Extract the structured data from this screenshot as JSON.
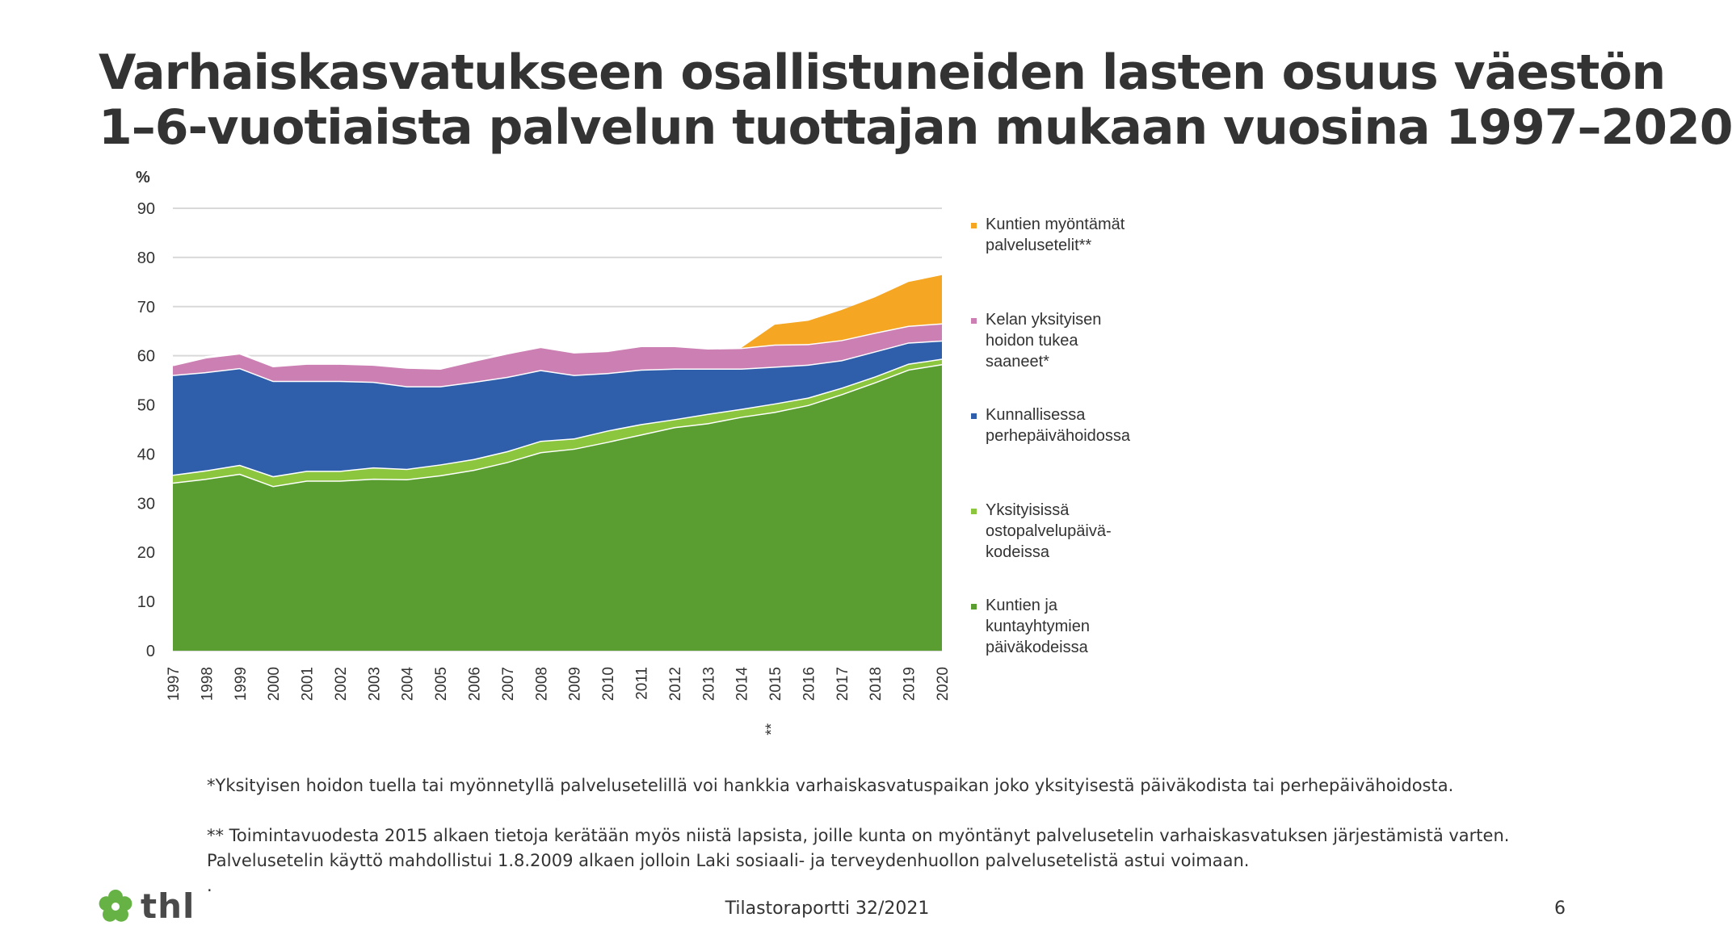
{
  "title_lines": [
    "Varhaiskasvatukseen osallistuneiden lasten osuus väestön",
    "1–6-vuotiaista palvelun tuottajan mukaan vuosina 1997–2020"
  ],
  "footnotes": {
    "note1": "*Yksityisen hoidon tuella tai myönnetyllä palvelusetelillä voi hankkia varhaiskasvatuspaikan joko yksityisestä päiväkodista tai perhepäivähoidosta.",
    "note2_line1": "** Toimintavuodesta 2015 alkaen tietoja kerätään myös niistä lapsista, joille kunta on myöntänyt palvelusetelin varhaiskasvatuksen järjestämistä varten.",
    "note2_line2": "Palvelusetelin käyttö mahdollistui 1.8.2009 alkaen jolloin Laki sosiaali- ja terveydenhuollon palvelusetelistä astui voimaan.",
    "dot": "."
  },
  "footer": {
    "center": "Tilastoraportti 32/2021",
    "page_number": "6",
    "logo_text": "thl"
  },
  "colors": {
    "green_dark": "#5a9e31",
    "green_light": "#8cc63f",
    "blue": "#2f5eab",
    "pink": "#cc7fb2",
    "orange": "#f5a623",
    "grid": "#d9d9d9",
    "logo_green": "#66b245"
  },
  "chart_data": {
    "type": "area",
    "stacked": true,
    "ylabel": "%",
    "ylim": [
      0,
      90
    ],
    "yticks": [
      0,
      10,
      20,
      30,
      40,
      50,
      60,
      70,
      80,
      90
    ],
    "grid": true,
    "legend_position": "right",
    "x": [
      "1997",
      "1998",
      "1999",
      "2000",
      "2001",
      "2002",
      "2003",
      "2004",
      "2005",
      "2006",
      "2007",
      "2008",
      "2009",
      "2010",
      "2011",
      "2012",
      "2013",
      "2014",
      "2015",
      "2016",
      "2017",
      "2018",
      "2019",
      "2020"
    ],
    "x_annotations": [
      {
        "x": "2015",
        "text": "**"
      }
    ],
    "series": [
      {
        "name": "Kuntien ja kuntayhtymien päiväkodeissa",
        "color": "#5a9e31",
        "values": [
          34.2,
          35.0,
          36.0,
          33.5,
          34.6,
          34.6,
          35.0,
          34.9,
          35.7,
          36.8,
          38.4,
          40.4,
          41.1,
          42.5,
          44.0,
          45.5,
          46.3,
          47.6,
          48.6,
          50.0,
          52.2,
          54.6,
          57.2,
          58.3
        ]
      },
      {
        "name": "Yksityisissä ostopalvelupäivä-kodeissa",
        "color": "#8cc63f",
        "values": [
          1.6,
          1.7,
          1.8,
          2.0,
          2.0,
          2.0,
          2.3,
          2.1,
          2.2,
          2.2,
          2.2,
          2.3,
          2.1,
          2.3,
          2.1,
          1.6,
          1.9,
          1.6,
          1.7,
          1.5,
          1.3,
          1.2,
          1.2,
          1.1
        ]
      },
      {
        "name": "Kunnallisessa perhepäivähoidossa",
        "color": "#2f5eab",
        "values": [
          20.3,
          20.0,
          19.7,
          19.4,
          18.3,
          18.3,
          17.4,
          16.8,
          15.9,
          15.7,
          15.1,
          14.4,
          12.9,
          11.7,
          11.1,
          10.3,
          9.2,
          8.2,
          7.5,
          6.7,
          5.6,
          5.1,
          4.3,
          3.7
        ]
      },
      {
        "name": "Kelan yksityisen hoidon tukea saaneet*",
        "color": "#cc7fb2",
        "values": [
          2.0,
          3.0,
          3.0,
          3.0,
          3.5,
          3.5,
          3.5,
          3.8,
          3.6,
          4.3,
          4.8,
          4.7,
          4.6,
          4.5,
          4.8,
          4.6,
          4.1,
          4.2,
          4.5,
          4.2,
          4.1,
          3.8,
          3.4,
          3.5
        ]
      },
      {
        "name": "Kuntien myöntämät palvelusetelit**",
        "color": "#f5a623",
        "values": [
          0,
          0,
          0,
          0,
          0,
          0,
          0,
          0,
          0,
          0,
          0,
          0,
          0,
          0,
          0,
          0,
          0,
          0,
          4.0,
          4.7,
          6.1,
          7.2,
          8.9,
          9.8
        ]
      }
    ],
    "legend": [
      {
        "lines": [
          "Kuntien myöntämät",
          "palvelusetelit**"
        ],
        "color": "#f5a623"
      },
      {
        "lines": [
          "Kelan yksityisen",
          "hoidon tukea",
          "saaneet*"
        ],
        "color": "#cc7fb2"
      },
      {
        "lines": [
          "Kunnallisessa",
          "perhepäivähoidossa"
        ],
        "color": "#2f5eab"
      },
      {
        "lines": [
          "Yksityisissä",
          "ostopalvelupäivä-",
          "kodeissa"
        ],
        "color": "#8cc63f"
      },
      {
        "lines": [
          "Kuntien ja",
          "kuntayhtymien",
          "päiväkodeissa"
        ],
        "color": "#5a9e31"
      }
    ]
  }
}
